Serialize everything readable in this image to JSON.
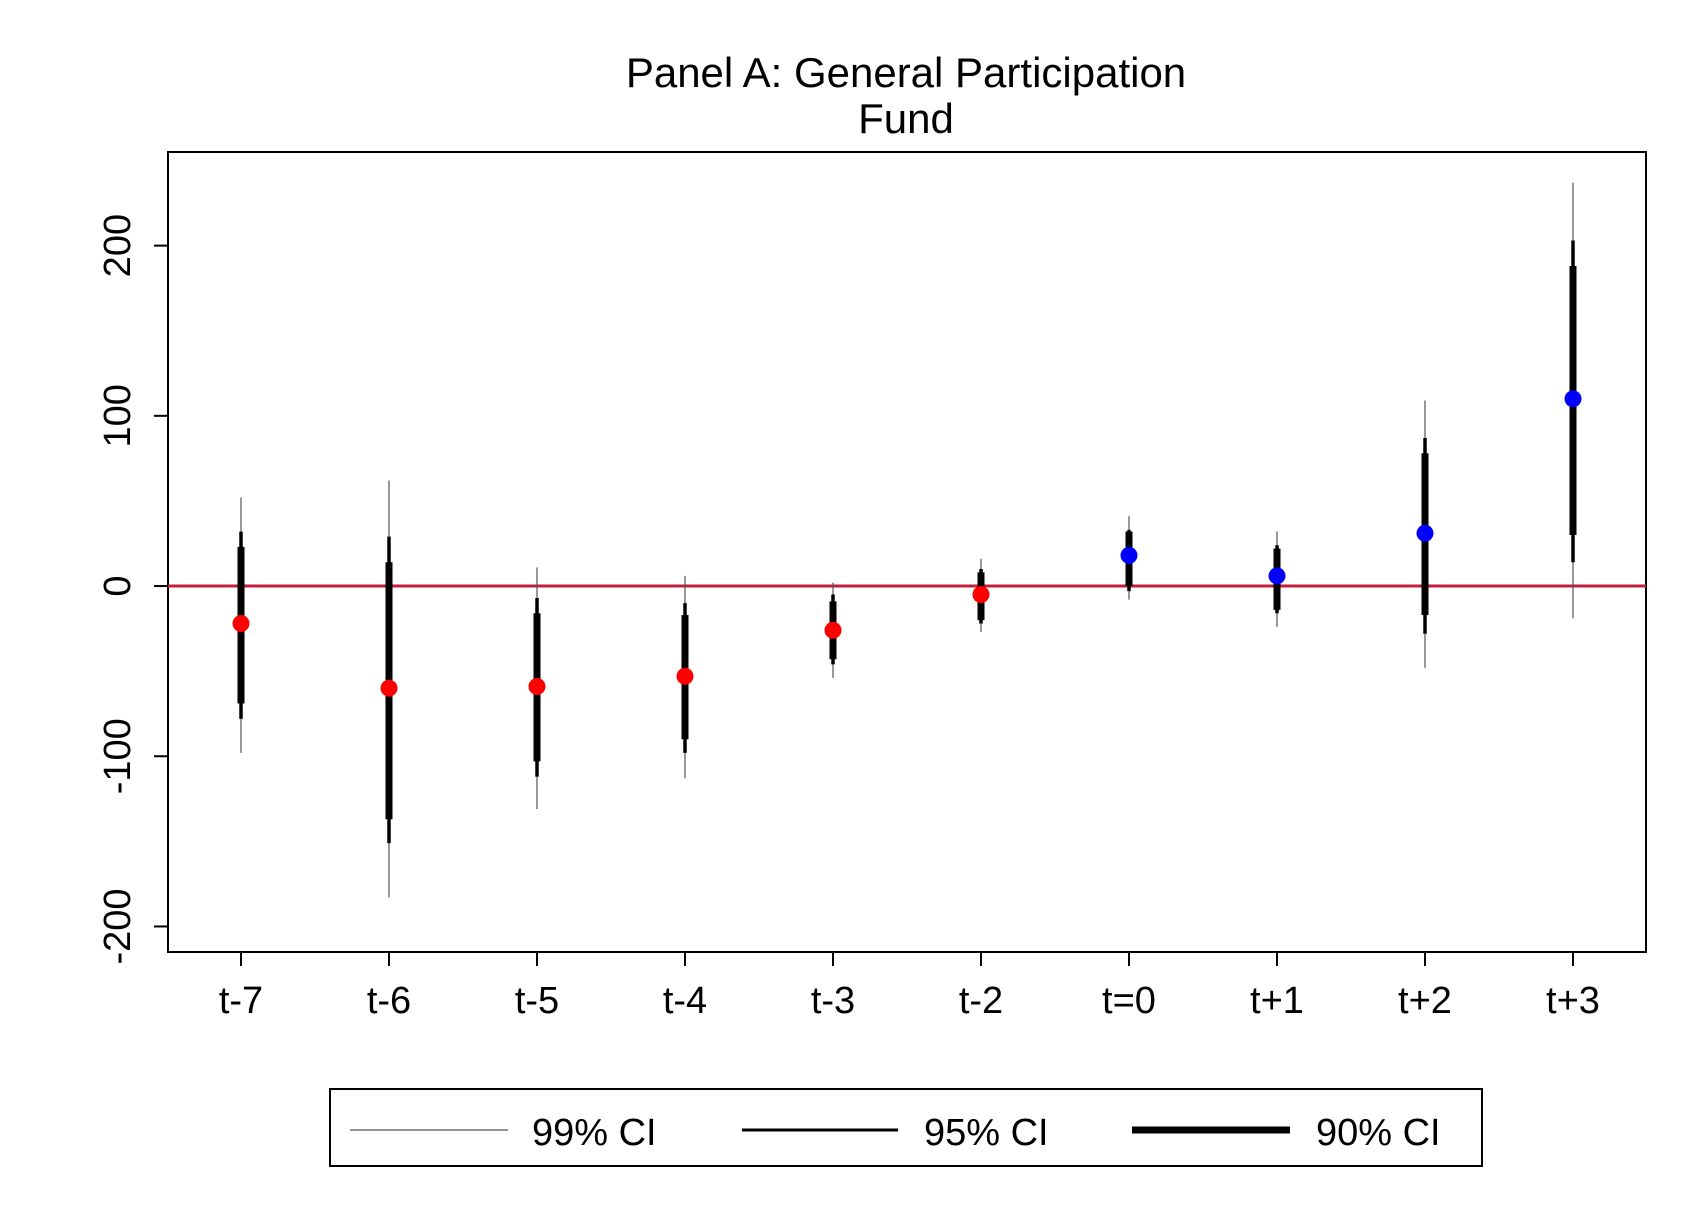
{
  "chart_data": {
    "type": "scatter",
    "title": [
      "Panel A: General Participation",
      "Fund"
    ],
    "xlabel": "",
    "ylabel": "",
    "categories": [
      "t-7",
      "t-6",
      "t-5",
      "t-4",
      "t-3",
      "t-2",
      "t=0",
      "t+1",
      "t+2",
      "t+3"
    ],
    "estimates": [
      -22,
      -60,
      -59,
      -53,
      -26,
      -5,
      18,
      6,
      31,
      110
    ],
    "ci90": [
      [
        -69,
        23
      ],
      [
        -137,
        14
      ],
      [
        -103,
        -16
      ],
      [
        -90,
        -17
      ],
      [
        -43,
        -9
      ],
      [
        -20,
        8
      ],
      [
        0,
        32
      ],
      [
        -14,
        22
      ],
      [
        -17,
        78
      ],
      [
        30,
        188
      ]
    ],
    "ci95": [
      [
        -78,
        32
      ],
      [
        -151,
        29
      ],
      [
        -112,
        -7
      ],
      [
        -98,
        -10
      ],
      [
        -46,
        -5
      ],
      [
        -22,
        10
      ],
      [
        -3,
        33
      ],
      [
        -16,
        24
      ],
      [
        -28,
        87
      ],
      [
        14,
        203
      ]
    ],
    "ci99": [
      [
        -98,
        52
      ],
      [
        -183,
        62
      ],
      [
        -131,
        11
      ],
      [
        -113,
        6
      ],
      [
        -54,
        2
      ],
      [
        -27,
        16
      ],
      [
        -8,
        41
      ],
      [
        -24,
        32
      ],
      [
        -48,
        109
      ],
      [
        -19,
        237
      ]
    ],
    "point_colors": [
      "#ff0000",
      "#ff0000",
      "#ff0000",
      "#ff0000",
      "#ff0000",
      "#ff0000",
      "#0000ff",
      "#0000ff",
      "#0000ff",
      "#0000ff"
    ],
    "ci_color": "#000000",
    "reference_line": {
      "y": 0,
      "color": "#c41e3a"
    },
    "ylim": [
      -215,
      255
    ],
    "yticks": [
      -200,
      -100,
      0,
      100,
      200
    ],
    "ytick_labels": [
      "-200",
      "-100",
      "0",
      "100",
      "200"
    ],
    "grid": false,
    "legend": {
      "position": "bottom",
      "entries": [
        "99% CI",
        "95% CI",
        "90% CI"
      ]
    }
  }
}
